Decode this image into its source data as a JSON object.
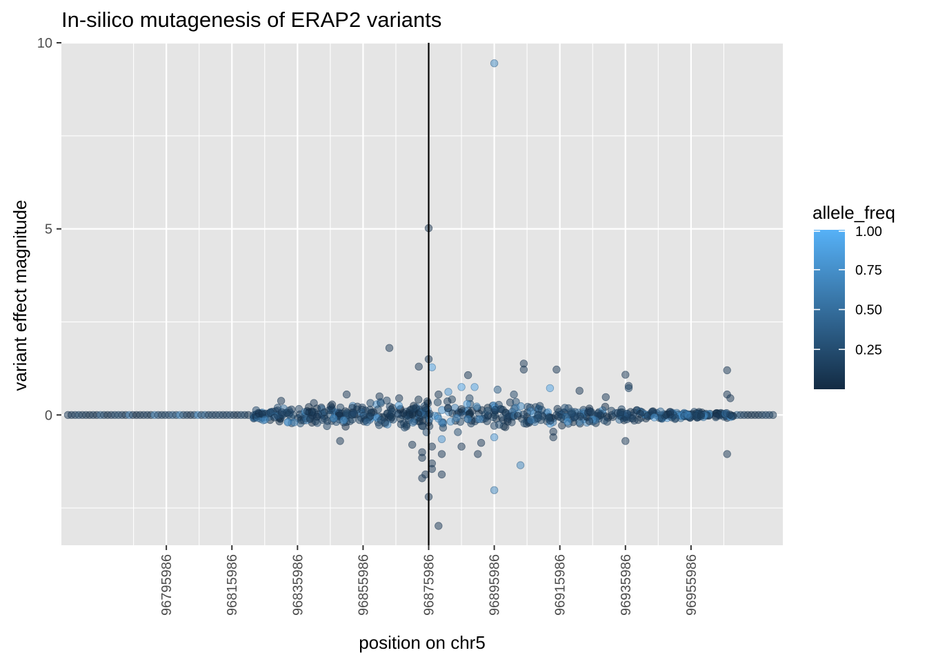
{
  "chart_data": {
    "type": "scatter",
    "title": "In-silico mutagenesis of ERAP2 variants",
    "xlabel": "position on chr5",
    "ylabel": "variant effect magnitude",
    "xlim": [
      96763986,
      96983986
    ],
    "ylim": [
      -3.5,
      10
    ],
    "x_ticks": [
      96795986,
      96815986,
      96835986,
      96855986,
      96875986,
      96895986,
      96915986,
      96935986,
      96955986
    ],
    "x_tick_labels": [
      "96795986",
      "96815986",
      "96835986",
      "96855986",
      "96875986",
      "96895986",
      "96915986",
      "96935986",
      "96955986"
    ],
    "y_ticks": [
      0,
      5,
      10
    ],
    "y_tick_labels": [
      "0",
      "5",
      "10"
    ],
    "vline_x": 96875986,
    "grid": true,
    "point_alpha": 0.5,
    "legend": {
      "title": "allele_freq",
      "placement": "right",
      "type": "colorbar",
      "breaks": [
        1.0,
        0.75,
        0.5,
        0.25
      ],
      "labels": [
        "1.00",
        "0.75",
        "0.50",
        "0.25"
      ],
      "color_low": "#132B43",
      "color_high": "#56B1F7",
      "range": [
        0.0,
        1.0
      ]
    },
    "points": [
      {
        "x": 96895986,
        "y": 9.45,
        "af": 0.7
      },
      {
        "x": 96875986,
        "y": 5.02,
        "af": 0.05
      },
      {
        "x": 96863986,
        "y": 1.8,
        "af": 0.1
      },
      {
        "x": 96872986,
        "y": 1.3,
        "af": 0.1
      },
      {
        "x": 96875986,
        "y": 1.5,
        "af": 0.1
      },
      {
        "x": 96876986,
        "y": 1.28,
        "af": 0.9
      },
      {
        "x": 96887986,
        "y": 1.07,
        "af": 0.1
      },
      {
        "x": 96904986,
        "y": 1.38,
        "af": 0.1
      },
      {
        "x": 96904986,
        "y": 1.22,
        "af": 0.1
      },
      {
        "x": 96914986,
        "y": 1.22,
        "af": 0.1
      },
      {
        "x": 96935986,
        "y": 1.08,
        "af": 0.1
      },
      {
        "x": 96936986,
        "y": 0.78,
        "af": 0.1
      },
      {
        "x": 96936986,
        "y": 0.72,
        "af": 0.2
      },
      {
        "x": 96966986,
        "y": 1.2,
        "af": 0.1
      },
      {
        "x": 96966986,
        "y": 0.55,
        "af": 0.1
      },
      {
        "x": 96967986,
        "y": 0.45,
        "af": 0.1
      },
      {
        "x": 96850986,
        "y": 0.55,
        "af": 0.1
      },
      {
        "x": 96860986,
        "y": 0.5,
        "af": 0.1
      },
      {
        "x": 96881986,
        "y": 0.62,
        "af": 0.8
      },
      {
        "x": 96885986,
        "y": 0.75,
        "af": 0.9
      },
      {
        "x": 96889986,
        "y": 0.75,
        "af": 0.9
      },
      {
        "x": 96896986,
        "y": 0.68,
        "af": 0.4
      },
      {
        "x": 96901986,
        "y": 0.55,
        "af": 0.2
      },
      {
        "x": 96912986,
        "y": 0.72,
        "af": 0.9
      },
      {
        "x": 96921986,
        "y": 0.65,
        "af": 0.1
      },
      {
        "x": 96929986,
        "y": 0.48,
        "af": 0.1
      },
      {
        "x": 96866986,
        "y": 0.45,
        "af": 0.1
      },
      {
        "x": 96878986,
        "y": 0.55,
        "af": 0.1
      },
      {
        "x": 96848986,
        "y": -0.7,
        "af": 0.1
      },
      {
        "x": 96870986,
        "y": -0.8,
        "af": 0.1
      },
      {
        "x": 96873986,
        "y": -1.0,
        "af": 0.1
      },
      {
        "x": 96873986,
        "y": -1.15,
        "af": 0.1
      },
      {
        "x": 96873986,
        "y": -1.7,
        "af": 0.1
      },
      {
        "x": 96874986,
        "y": -1.6,
        "af": 0.1
      },
      {
        "x": 96876986,
        "y": -1.3,
        "af": 0.1
      },
      {
        "x": 96876986,
        "y": -0.85,
        "af": 0.1
      },
      {
        "x": 96875986,
        "y": -2.2,
        "af": 0.1
      },
      {
        "x": 96879986,
        "y": -1.6,
        "af": 0.1
      },
      {
        "x": 96878986,
        "y": -2.98,
        "af": 0.1
      },
      {
        "x": 96879986,
        "y": -1.05,
        "af": 0.1
      },
      {
        "x": 96876986,
        "y": -1.45,
        "af": 0.1
      },
      {
        "x": 96879986,
        "y": -0.65,
        "af": 0.8
      },
      {
        "x": 96885986,
        "y": -0.85,
        "af": 0.1
      },
      {
        "x": 96891986,
        "y": -0.75,
        "af": 0.1
      },
      {
        "x": 96895986,
        "y": -0.6,
        "af": 0.8
      },
      {
        "x": 96890986,
        "y": -1.05,
        "af": 0.1
      },
      {
        "x": 96903986,
        "y": -1.35,
        "af": 0.7
      },
      {
        "x": 96895986,
        "y": -2.02,
        "af": 0.7
      },
      {
        "x": 96913986,
        "y": -0.6,
        "af": 0.1
      },
      {
        "x": 96913986,
        "y": -0.45,
        "af": 0.1
      },
      {
        "x": 96935986,
        "y": -0.7,
        "af": 0.1
      },
      {
        "x": 96966986,
        "y": -1.05,
        "af": 0.1
      },
      {
        "x": 96830986,
        "y": 0.38,
        "af": 0.1
      },
      {
        "x": 96840986,
        "y": 0.32,
        "af": 0.1
      },
      {
        "x": 96832986,
        "y": -0.2,
        "af": 0.8
      },
      {
        "x": 96834986,
        "y": -0.2,
        "af": 0.7
      },
      {
        "x": 96844986,
        "y": -0.3,
        "af": 0.2
      }
    ]
  }
}
